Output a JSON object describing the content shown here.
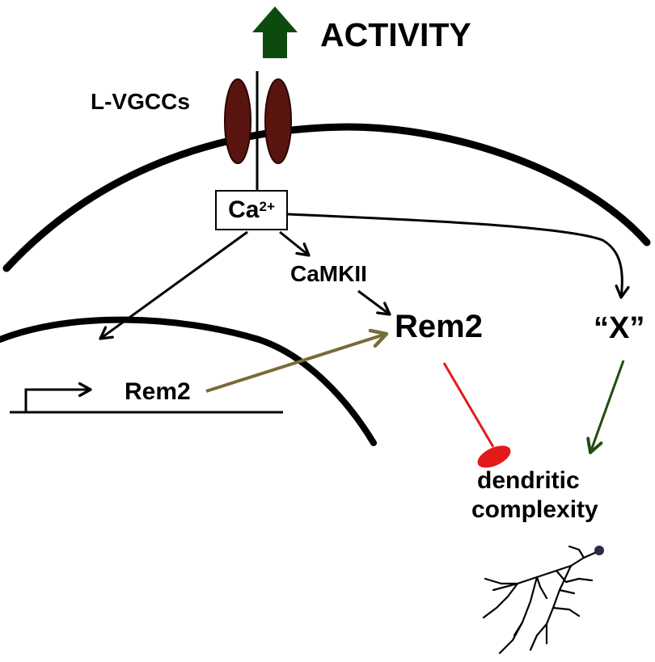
{
  "title": "ACTIVITY",
  "channel_label": "L-VGCCs",
  "calcium": {
    "base": "Ca",
    "superscript": "2+"
  },
  "kinase_label": "CaMKII",
  "protein_label": "Rem2",
  "gene_label": "Rem2",
  "unknown_label": "“X”",
  "outcome_line1": "dendritic",
  "outcome_line2": "complexity",
  "colors": {
    "activity_arrow": "#0d4a0d",
    "channel": "#5a1410",
    "channel_outline": "#2a0604",
    "translation_arrow": "#7a6a3a",
    "inhibition": "#e41a1a",
    "promotion": "#1f4d12",
    "line": "#000000"
  }
}
